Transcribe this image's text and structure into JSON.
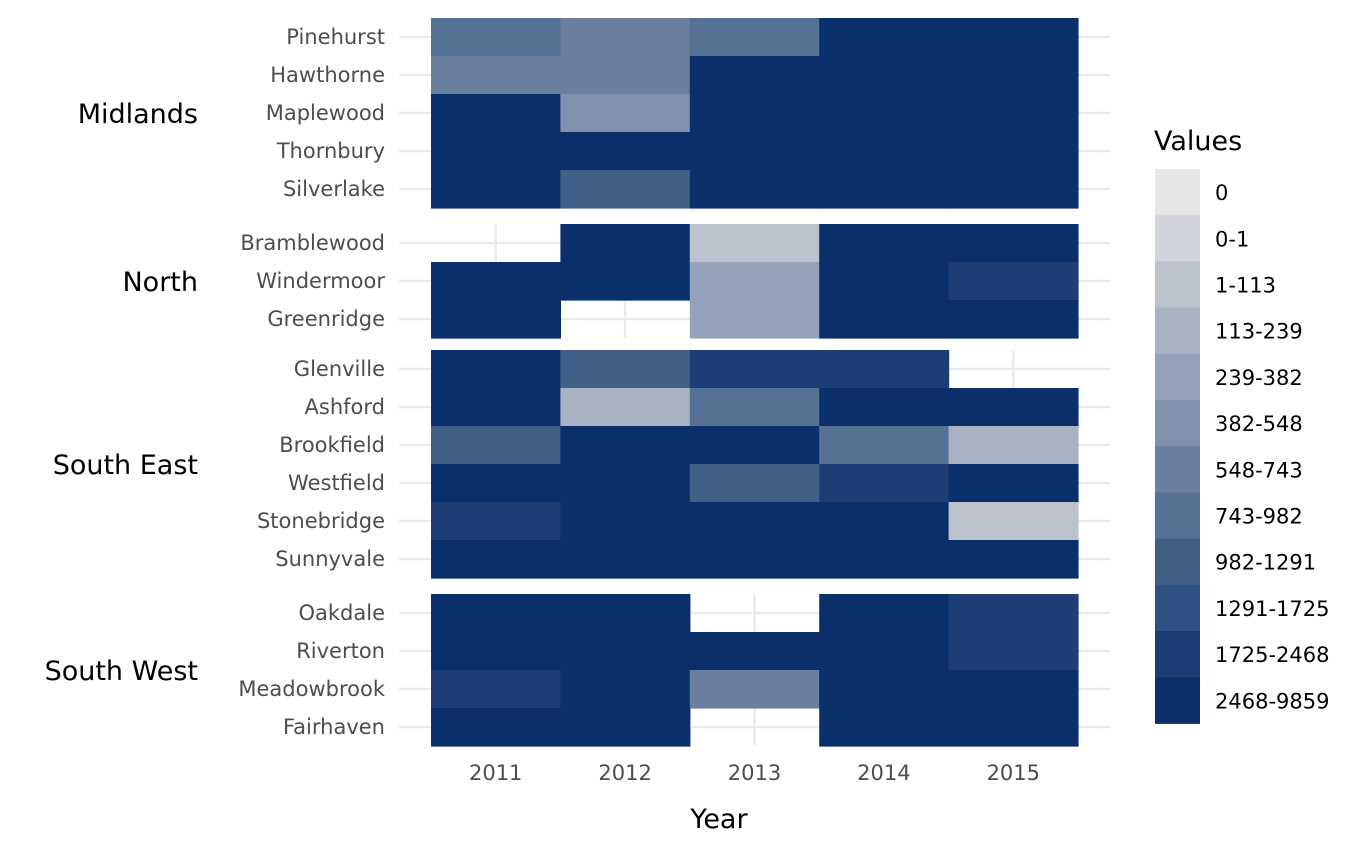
{
  "chart_data": {
    "type": "heatmap",
    "title": "",
    "xlabel": "Year",
    "ylabel": "",
    "x": [
      "2011",
      "2012",
      "2013",
      "2014",
      "2015"
    ],
    "grid": true,
    "legend": {
      "title": "Values",
      "placement": "right",
      "bins": [
        "0",
        "0-1",
        "1-113",
        "113-239",
        "239-382",
        "382-548",
        "548-743",
        "743-982",
        "982-1291",
        "1291-1725",
        "1725-2468",
        "2468-9859"
      ],
      "colors": [
        "#e6e6e6",
        "#d1d4da",
        "#bcc2cc",
        "#a8b2c3",
        "#95a3ba",
        "#8191ad",
        "#6b7f9f",
        "#577194",
        "#426086",
        "#2e5083",
        "#1e3d74",
        "#0a2f6a"
      ]
    },
    "groups": [
      {
        "name": "Midlands",
        "rows": [
          {
            "name": "Pinehurst",
            "values": [
              "743-982",
              "548-743",
              "743-982",
              "2468-9859",
              "2468-9859"
            ]
          },
          {
            "name": "Hawthorne",
            "values": [
              "548-743",
              "548-743",
              "2468-9859",
              "2468-9859",
              "2468-9859"
            ]
          },
          {
            "name": "Maplewood",
            "values": [
              "2468-9859",
              "382-548",
              "2468-9859",
              "2468-9859",
              "2468-9859"
            ]
          },
          {
            "name": "Thornbury",
            "values": [
              "2468-9859",
              "2468-9859",
              "2468-9859",
              "2468-9859",
              "2468-9859"
            ]
          },
          {
            "name": "Silverlake",
            "values": [
              "2468-9859",
              "982-1291",
              "2468-9859",
              "2468-9859",
              "2468-9859"
            ]
          }
        ]
      },
      {
        "name": "North",
        "rows": [
          {
            "name": "Bramblewood",
            "values": [
              null,
              "2468-9859",
              "1-113",
              "2468-9859",
              "2468-9859"
            ]
          },
          {
            "name": "Windermoor",
            "values": [
              "2468-9859",
              "2468-9859",
              "239-382",
              "2468-9859",
              "1725-2468"
            ]
          },
          {
            "name": "Greenridge",
            "values": [
              "2468-9859",
              null,
              "239-382",
              "2468-9859",
              "2468-9859"
            ]
          }
        ]
      },
      {
        "name": "South East",
        "rows": [
          {
            "name": "Glenville",
            "values": [
              "2468-9859",
              "982-1291",
              "1725-2468",
              "1725-2468",
              null
            ]
          },
          {
            "name": "Ashford",
            "values": [
              "2468-9859",
              "113-239",
              "743-982",
              "2468-9859",
              "2468-9859"
            ]
          },
          {
            "name": "Brookfield",
            "values": [
              "982-1291",
              "2468-9859",
              "2468-9859",
              "743-982",
              "113-239"
            ]
          },
          {
            "name": "Westfield",
            "values": [
              "2468-9859",
              "2468-9859",
              "982-1291",
              "1725-2468",
              "2468-9859"
            ]
          },
          {
            "name": "Stonebridge",
            "values": [
              "1725-2468",
              "2468-9859",
              "2468-9859",
              "2468-9859",
              "1-113"
            ]
          },
          {
            "name": "Sunnyvale",
            "values": [
              "2468-9859",
              "2468-9859",
              "2468-9859",
              "2468-9859",
              "2468-9859"
            ]
          }
        ]
      },
      {
        "name": "South West",
        "rows": [
          {
            "name": "Oakdale",
            "values": [
              "2468-9859",
              "2468-9859",
              null,
              "2468-9859",
              "1725-2468"
            ]
          },
          {
            "name": "Riverton",
            "values": [
              "2468-9859",
              "2468-9859",
              "2468-9859",
              "2468-9859",
              "1725-2468"
            ]
          },
          {
            "name": "Meadowbrook",
            "values": [
              "1725-2468",
              "2468-9859",
              "548-743",
              "2468-9859",
              "2468-9859"
            ]
          },
          {
            "name": "Fairhaven",
            "values": [
              "2468-9859",
              "2468-9859",
              null,
              "2468-9859",
              "2468-9859"
            ]
          }
        ]
      }
    ]
  }
}
